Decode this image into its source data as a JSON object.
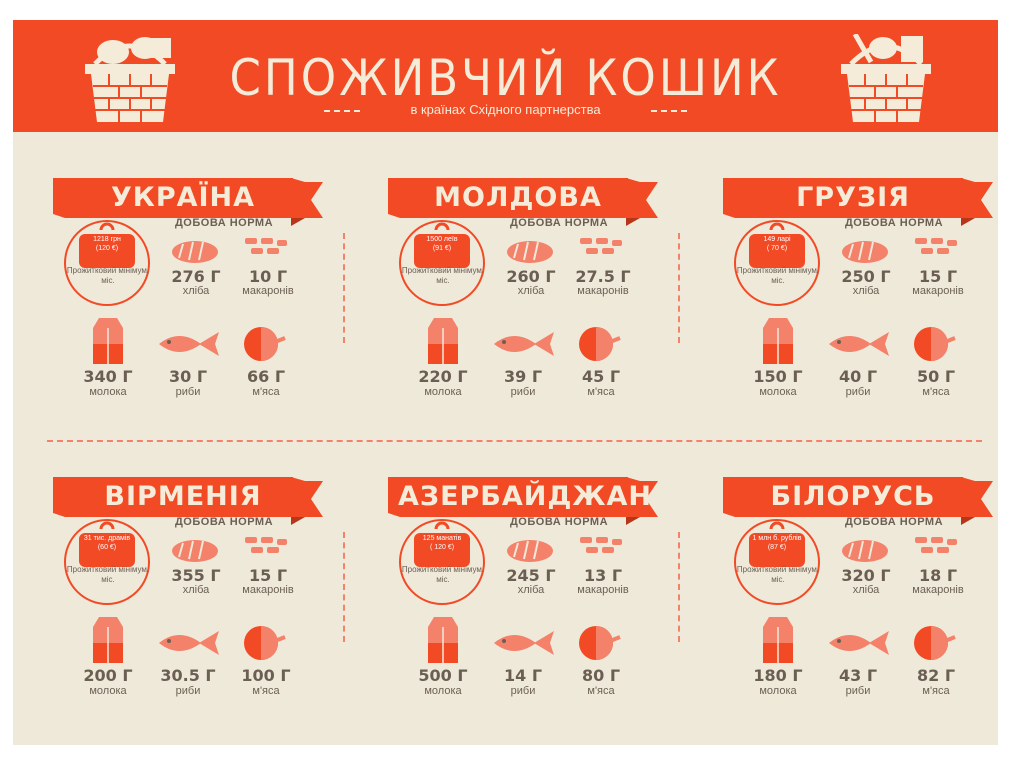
{
  "title": "СПОЖИВЧИЙ КОШИК",
  "subtitle": "в країнах Східного партнерства",
  "daily_norm_label": "ДОБОВА НОРМА",
  "purse_caption": "Прожитковий мінімум, міс.",
  "items": {
    "bread": "хліба",
    "pasta": "макаронів",
    "milk": "молока",
    "fish": "риби",
    "meat": "м'яса"
  },
  "colors": {
    "orange": "#f24a25",
    "salmon": "#f4816a",
    "cream": "#efe9da",
    "gray": "#6b5f53"
  },
  "countries": [
    {
      "name": "УКРАЇНА",
      "min_sum": "1218 грн",
      "min_eur": "(120 €)",
      "bread": "276 Г",
      "pasta": "10 Г",
      "milk": "340 Г",
      "fish": "30 Г",
      "meat": "66 Г"
    },
    {
      "name": "МОЛДОВА",
      "min_sum": "1500 леїв",
      "min_eur": "(91 €)",
      "bread": "260 Г",
      "pasta": "27.5 Г",
      "milk": "220 Г",
      "fish": "39 Г",
      "meat": "45 Г"
    },
    {
      "name": "ГРУЗІЯ",
      "min_sum": "149 ларі",
      "min_eur": "( 70 €)",
      "bread": "250 Г",
      "pasta": "15 Г",
      "milk": "150 Г",
      "fish": "40 Г",
      "meat": "50 Г"
    },
    {
      "name": "ВІРМЕНІЯ",
      "min_sum": "31 тис. драмів",
      "min_eur": "(60 €)",
      "bread": "355 Г",
      "pasta": "15 Г",
      "milk": "200 Г",
      "fish": "30.5 Г",
      "meat": "100 Г"
    },
    {
      "name": "АЗЕРБАЙДЖАН",
      "min_sum": "125 манатів",
      "min_eur": "( 120 €)",
      "bread": "245 Г",
      "pasta": "13 Г",
      "milk": "500 Г",
      "fish": "14 Г",
      "meat": "80 Г"
    },
    {
      "name": "БІЛОРУСЬ",
      "min_sum": "1 млн б. рублів",
      "min_eur": "(87 €)",
      "bread": "320 Г",
      "pasta": "18 Г",
      "milk": "180 Г",
      "fish": "43 Г",
      "meat": "82 Г"
    }
  ]
}
